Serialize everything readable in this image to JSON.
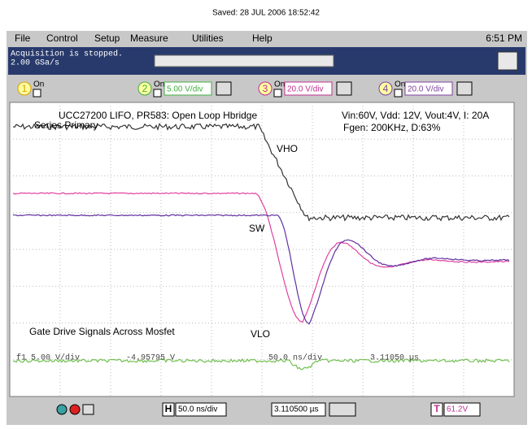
{
  "header": {
    "saved": "Saved:  28 JUL 2006  18:52:42"
  },
  "menu": {
    "items": [
      "File",
      "Control",
      "Setup",
      "Measure",
      "Utilities",
      "Help"
    ],
    "time": "6:51 PM"
  },
  "status": {
    "line1": "Acquisition is stopped.",
    "line2": "2.00 GSa/s"
  },
  "channels": [
    {
      "number": "1",
      "state": "On",
      "scale": ""
    },
    {
      "number": "2",
      "state": "On",
      "scale": "5.00 V/div"
    },
    {
      "number": "3",
      "state": "On",
      "scale": "20.0 V/div"
    },
    {
      "number": "4",
      "state": "On",
      "scale": "20.0 V/div"
    }
  ],
  "screen": {
    "title": "UCC27200 LIFO, PR583: Open Loop Hbridge",
    "subtitle": "Series Primary",
    "conditions": "Vin:60V, Vdd: 12V, Vout:4V, I: 20A",
    "fgen": "Fgen: 200KHz, D:63%",
    "labels": {
      "vho": "VHO",
      "sw": "SW",
      "vlo": "VLO"
    },
    "caption": "Gate Drive Signals Across Mosfet",
    "function": "f1  5.00 V/div",
    "offset": "-4.95795 V",
    "timebase": "50.0 ns/div",
    "position": "3.11050 µs"
  },
  "toolbar": {
    "h": "H",
    "timebase": "50.0 ns/div",
    "delay": "3.110500 µs",
    "t": "T",
    "level": "61.2V"
  }
}
